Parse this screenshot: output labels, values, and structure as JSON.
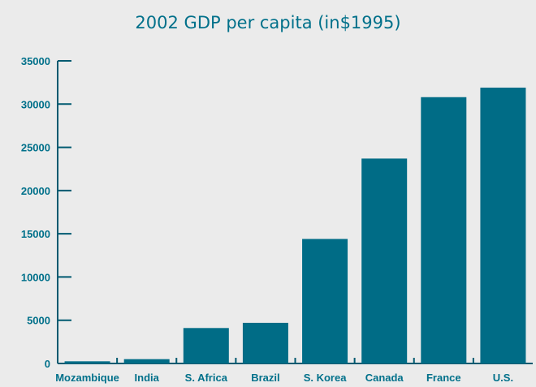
{
  "chart_data": {
    "type": "bar",
    "title": "2002 GDP per capita (in$1995)",
    "xlabel": "",
    "ylabel": "",
    "categories": [
      "Mozambique",
      "India",
      "S. Africa",
      "Brazil",
      "S. Korea",
      "Canada",
      "France",
      "U.S."
    ],
    "values": [
      250,
      500,
      4100,
      4700,
      14400,
      23700,
      30800,
      31900
    ],
    "ylim": [
      0,
      35000
    ],
    "yticks": [
      0,
      5000,
      10000,
      15000,
      20000,
      25000,
      30000,
      35000
    ],
    "grid": false,
    "legend": "none",
    "colors": {
      "bar": "#006c86",
      "axis": "#005a70",
      "text": "#00708a"
    }
  }
}
